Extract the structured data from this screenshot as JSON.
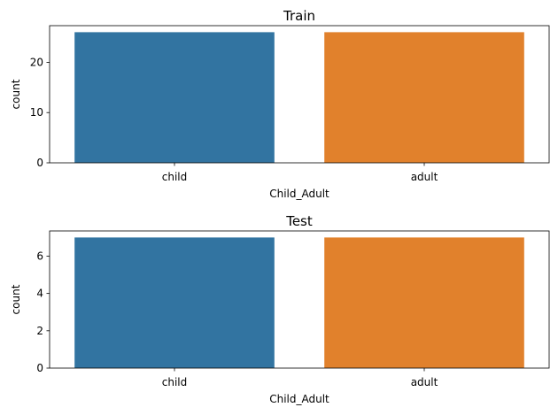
{
  "chart_data": [
    {
      "type": "bar",
      "title": "Train",
      "xlabel": "Child_Adult",
      "ylabel": "count",
      "categories": [
        "child",
        "adult"
      ],
      "values": [
        26,
        26
      ],
      "colors": [
        "#3274a1",
        "#e1812c"
      ],
      "ylim": [
        0,
        27.3
      ],
      "yticks": [
        0,
        10,
        20
      ],
      "grid": false,
      "legend": "none"
    },
    {
      "type": "bar",
      "title": "Test",
      "xlabel": "Child_Adult",
      "ylabel": "count",
      "categories": [
        "child",
        "adult"
      ],
      "values": [
        7,
        7
      ],
      "colors": [
        "#3274a1",
        "#e1812c"
      ],
      "ylim": [
        0,
        7.35
      ],
      "yticks": [
        0,
        2,
        4,
        6
      ],
      "grid": false,
      "legend": "none"
    }
  ]
}
